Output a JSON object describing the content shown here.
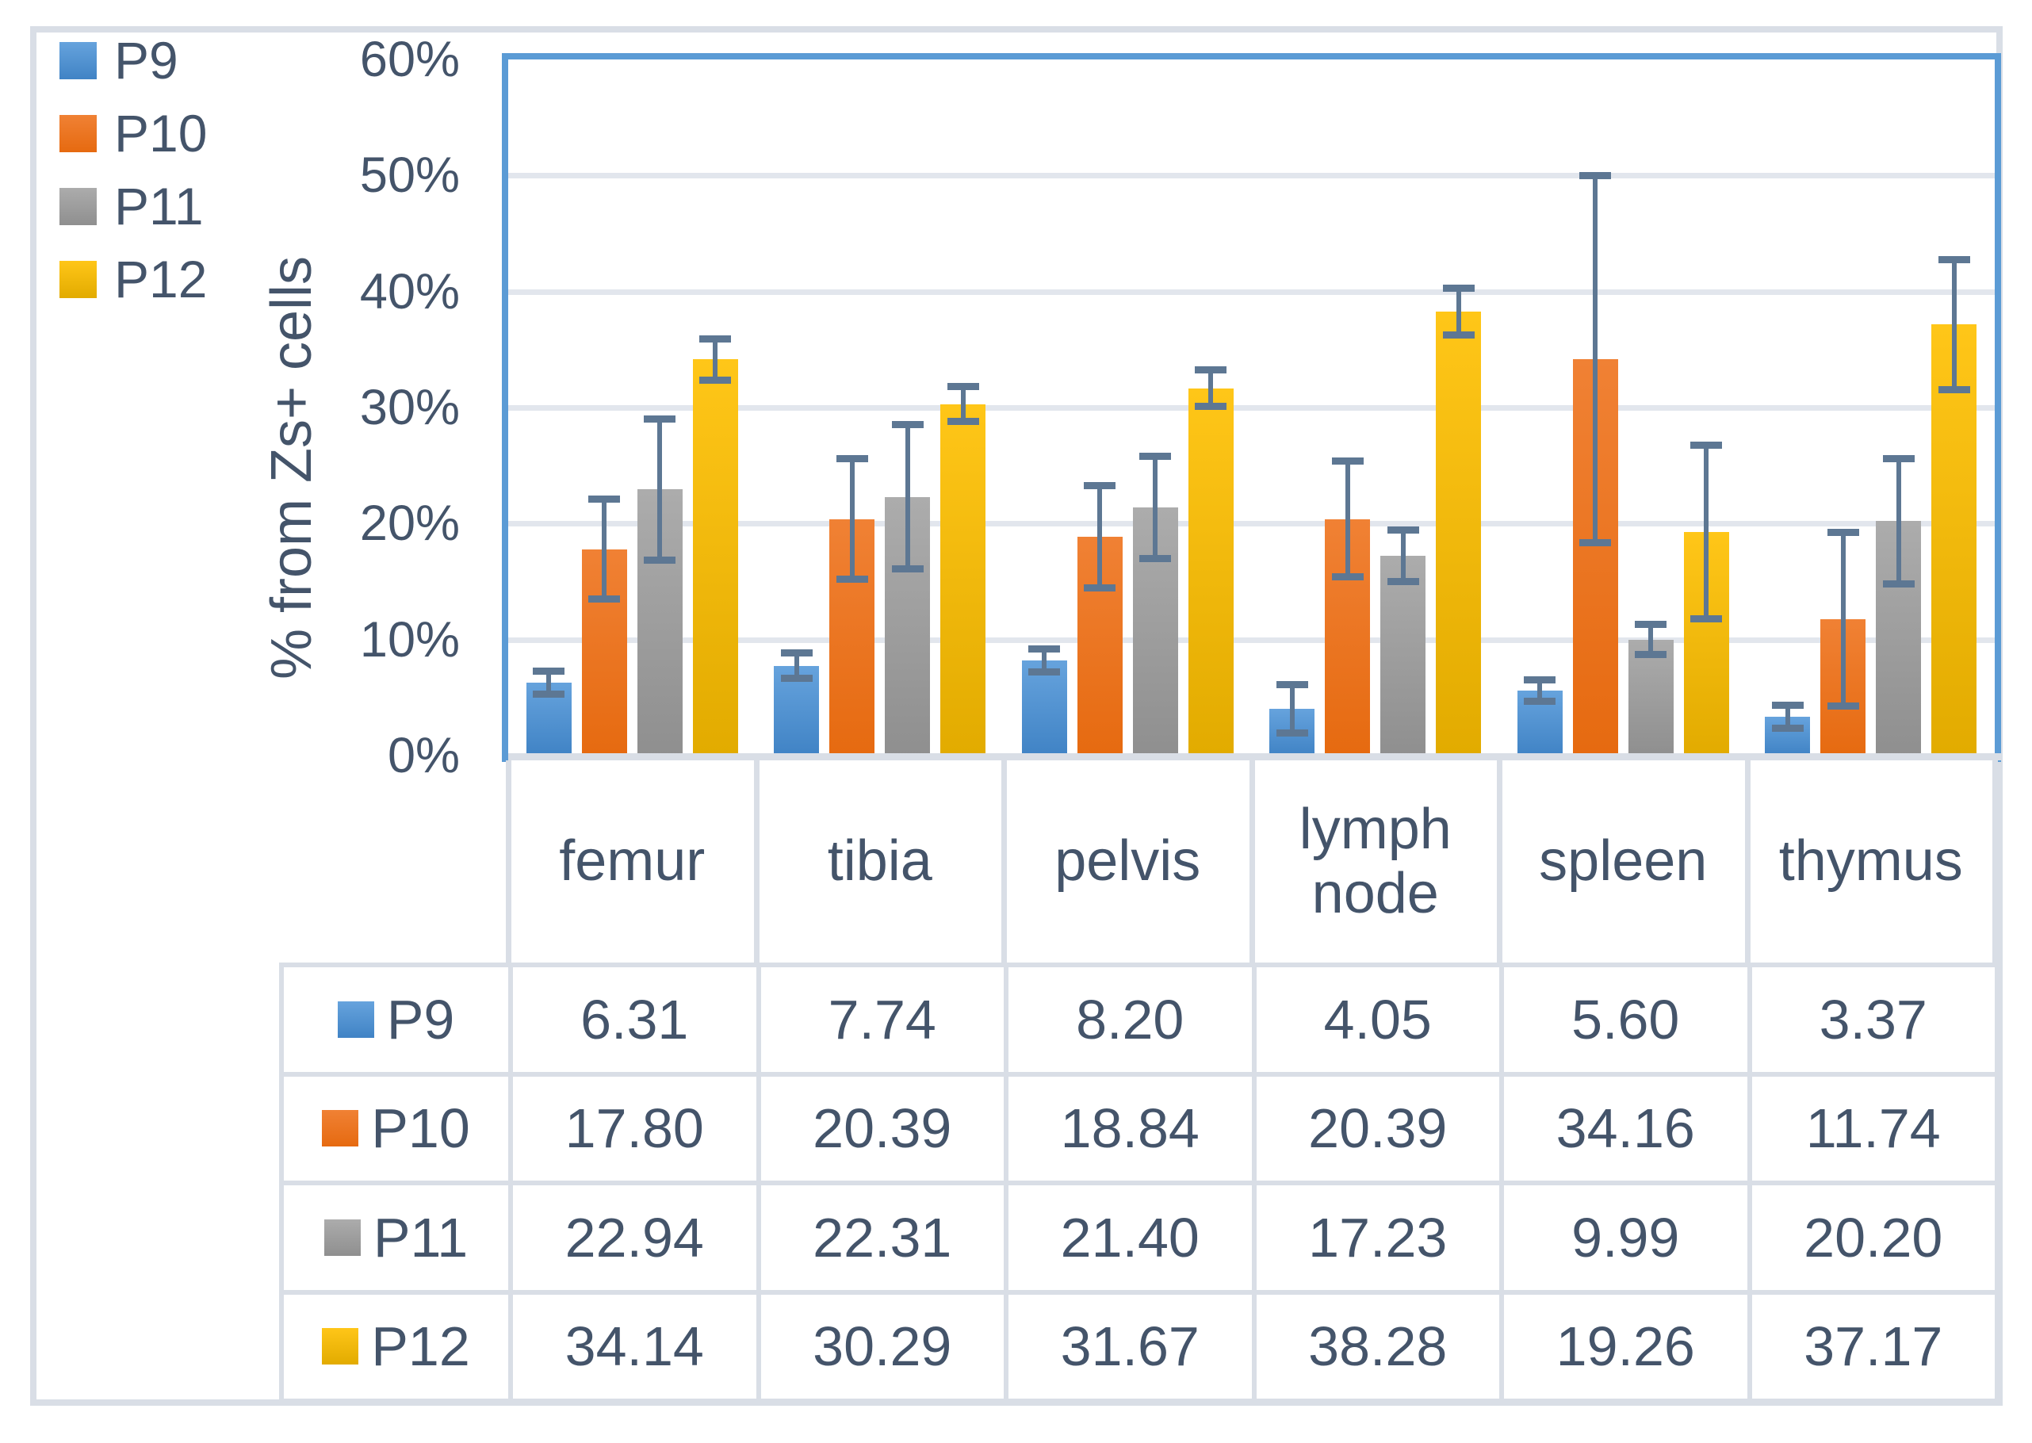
{
  "legend": {
    "items": [
      {
        "label": "P9"
      },
      {
        "label": "P10"
      },
      {
        "label": "P11"
      },
      {
        "label": "P12"
      }
    ]
  },
  "y_axis": {
    "title": "% from Zs+ cells",
    "tick_labels": [
      "0%",
      "10%",
      "20%",
      "30%",
      "40%",
      "50%",
      "60%"
    ]
  },
  "chart_data": {
    "type": "bar",
    "title": "",
    "xlabel": "",
    "ylabel": "% from Zs+ cells",
    "ylim": [
      0,
      60
    ],
    "y_tick_step": 10,
    "grid": true,
    "legend_position": "top-left",
    "error_bars": true,
    "categories": [
      "femur",
      "tibia",
      "pelvis",
      "lymph node",
      "spleen",
      "thymus"
    ],
    "series": [
      {
        "name": "P9",
        "color": "#5B9BD5",
        "fill_top": "#66A3DD",
        "fill_bottom": "#4083C5",
        "values": [
          6.31,
          7.74,
          8.2,
          4.05,
          5.6,
          3.37
        ],
        "errors": [
          1.0,
          1.1,
          1.0,
          2.1,
          0.9,
          1.0
        ]
      },
      {
        "name": "P10",
        "color": "#ED7D31",
        "fill_top": "#F08134",
        "fill_bottom": "#E66A10",
        "values": [
          17.8,
          20.39,
          18.84,
          20.39,
          34.16,
          11.74
        ],
        "errors": [
          4.3,
          5.2,
          4.4,
          5.0,
          15.8,
          7.5
        ]
      },
      {
        "name": "P11",
        "color": "#A5A5A5",
        "fill_top": "#ACACAC",
        "fill_bottom": "#8F8F8F",
        "values": [
          22.94,
          22.31,
          21.4,
          17.23,
          9.99,
          20.2
        ],
        "errors": [
          6.1,
          6.2,
          4.4,
          2.2,
          1.3,
          5.4
        ]
      },
      {
        "name": "P12",
        "color": "#FFC000",
        "fill_top": "#FFC618",
        "fill_bottom": "#E2AB00",
        "values": [
          34.14,
          30.29,
          31.67,
          38.28,
          19.26,
          37.17
        ],
        "errors": [
          1.8,
          1.5,
          1.6,
          2.0,
          7.5,
          5.6
        ]
      }
    ],
    "error_bar_color": "#5D7793",
    "plot_border_color": "#5B9BD5",
    "gridline_color": "#E2E6ED",
    "table_border_color": "#D9DEE6",
    "text_color": "#44546A"
  },
  "table": {
    "row_headers": [
      "P9",
      "P10",
      "P11",
      "P12"
    ],
    "columns": [
      "femur",
      "tibia",
      "pelvis",
      "lymph node",
      "spleen",
      "thymus"
    ],
    "rows": [
      [
        "6.31",
        "7.74",
        "8.20",
        "4.05",
        "5.60",
        "3.37"
      ],
      [
        "17.80",
        "20.39",
        "18.84",
        "20.39",
        "34.16",
        "11.74"
      ],
      [
        "22.94",
        "22.31",
        "21.40",
        "17.23",
        "9.99",
        "20.20"
      ],
      [
        "34.14",
        "30.29",
        "31.67",
        "38.28",
        "19.26",
        "37.17"
      ]
    ]
  }
}
